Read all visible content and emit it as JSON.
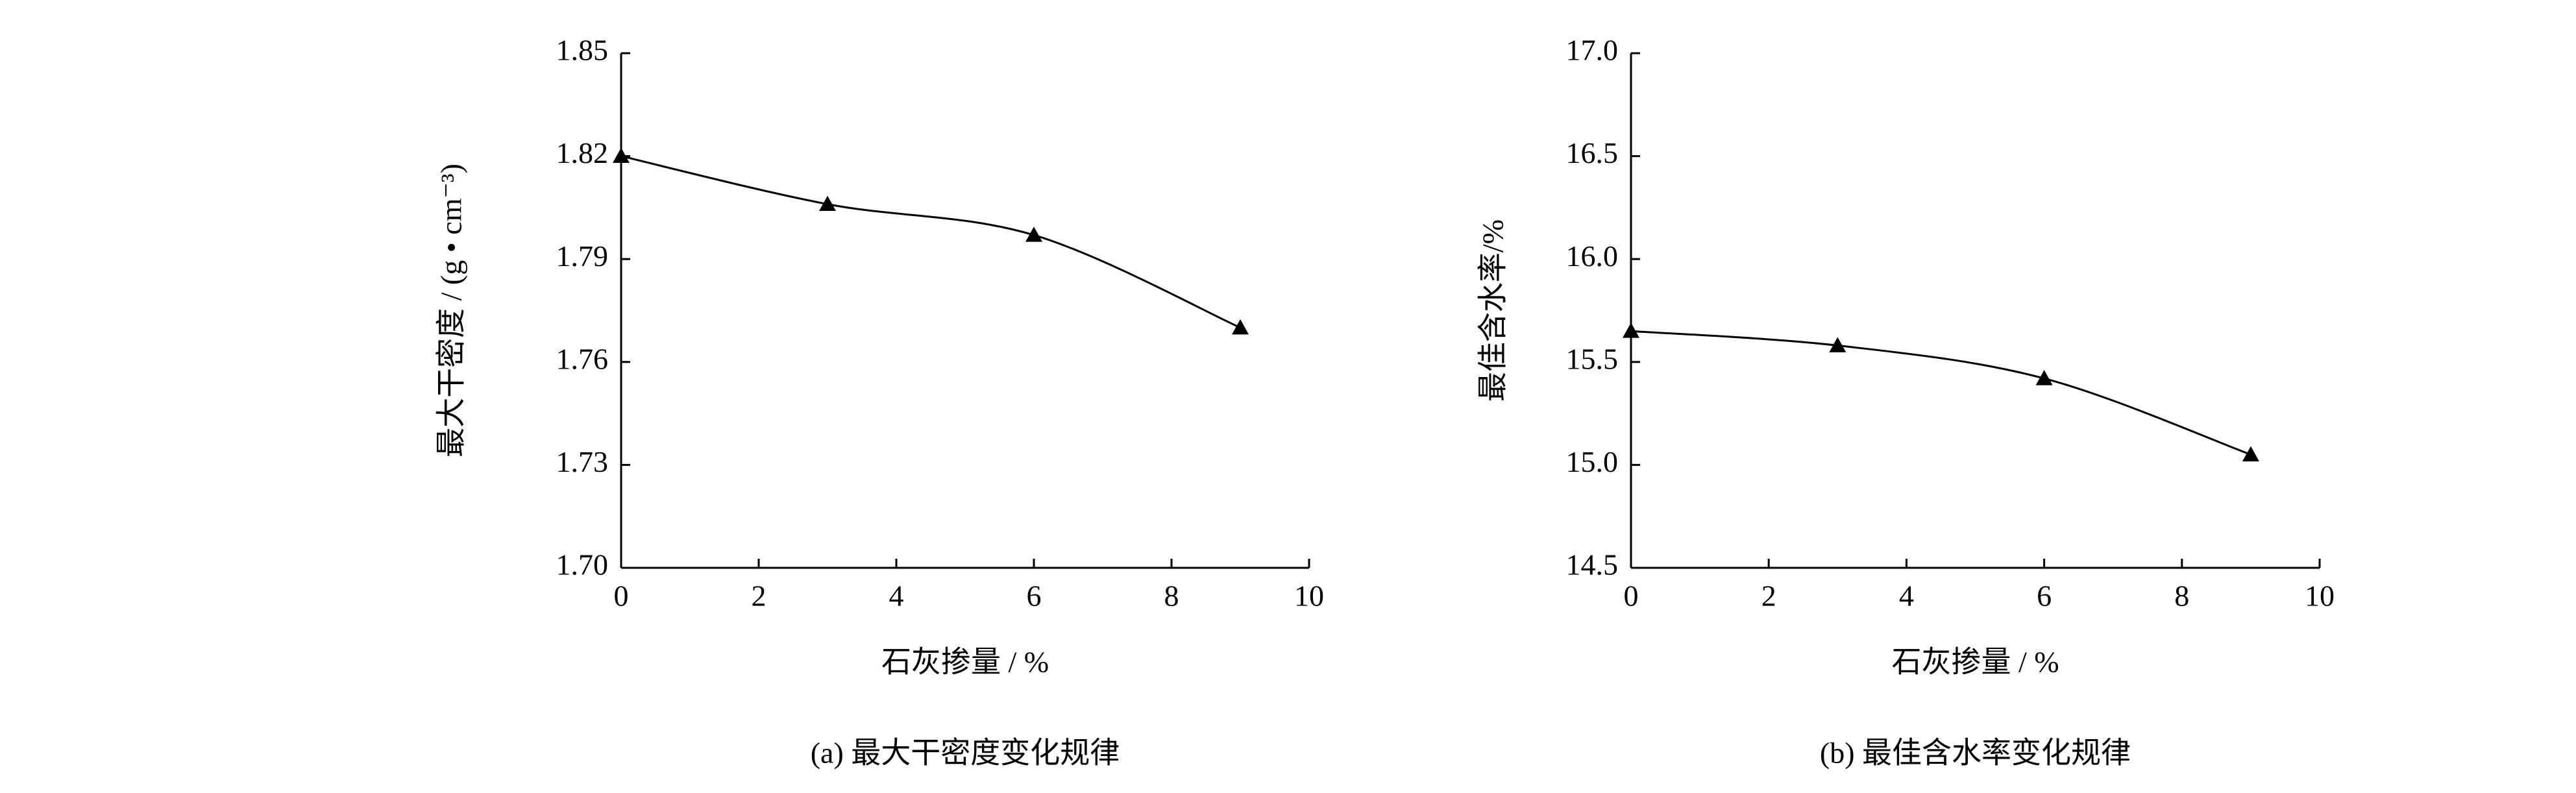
{
  "chart_data": [
    {
      "type": "line",
      "caption": "(a) 最大干密度变化规律",
      "x_label": "石灰掺量 / %",
      "y_label": "最大干密度 / (g • cm⁻³)",
      "x": [
        0,
        3,
        6,
        9
      ],
      "values": [
        1.82,
        1.806,
        1.797,
        1.77
      ],
      "color": "#000000",
      "xlim": [
        0,
        10
      ],
      "xticks": [
        0,
        2,
        4,
        6,
        8,
        10
      ],
      "ylim": [
        1.7,
        1.85
      ],
      "yticks": [
        {
          "value": 1.7,
          "label": "1.70"
        },
        1.73,
        1.76,
        1.79,
        1.82,
        1.85
      ]
    },
    {
      "type": "line",
      "caption": "(b) 最佳含水率变化规律",
      "x_label": "石灰掺量 / %",
      "y_label": "最佳含水率/%",
      "x": [
        0,
        3,
        6,
        9
      ],
      "values": [
        15.65,
        15.58,
        15.42,
        15.05
      ],
      "color": "#000000",
      "xlim": [
        0,
        10
      ],
      "xticks": [
        0,
        2,
        4,
        6,
        8,
        10
      ],
      "ylim": [
        14.5,
        17
      ],
      "yticks": [
        14.5,
        {
          "value": 15,
          "label": "15.0"
        },
        15.5,
        {
          "value": 16,
          "label": "16.0"
        },
        16.5,
        {
          "value": 17,
          "label": "17.0"
        }
      ]
    }
  ]
}
